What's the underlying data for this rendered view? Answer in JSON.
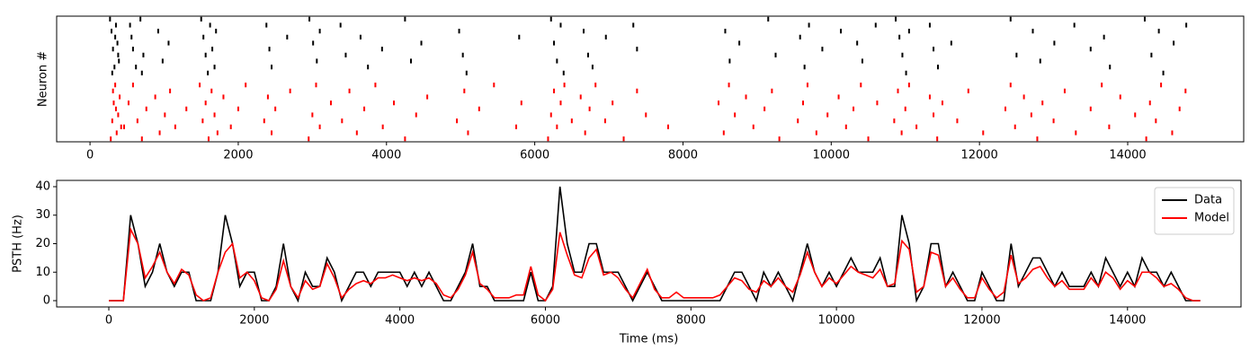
{
  "chart_data": [
    {
      "type": "raster",
      "ylabel": "Neuron #",
      "xlim": [
        -450,
        15565
      ],
      "ylim": [
        -0.5,
        20.5
      ],
      "xticks": [
        0,
        2000,
        4000,
        6000,
        8000,
        10000,
        12000,
        14000
      ],
      "series": [
        {
          "color": "#000000",
          "x": [
            270,
            290,
            310,
            330,
            350,
            370,
            390,
            300,
            340,
            380,
            540,
            580,
            620,
            560,
            680,
            720,
            700,
            920,
            980,
            1060,
            1500,
            1530,
            1560,
            1590,
            1620,
            1650,
            1680,
            1700,
            2380,
            2420,
            2450,
            2660,
            2960,
            3010,
            3060,
            3100,
            3380,
            3450,
            3650,
            3750,
            3940,
            4250,
            4330,
            4470,
            4980,
            5030,
            5080,
            5790,
            6220,
            6260,
            6300,
            6350,
            6390,
            6660,
            6720,
            6780,
            6960,
            7330,
            7380,
            8570,
            8630,
            8760,
            9150,
            9250,
            9580,
            9640,
            9700,
            9880,
            10130,
            10350,
            10420,
            10600,
            10870,
            10920,
            10960,
            11010,
            11050,
            11330,
            11380,
            11440,
            11620,
            12420,
            12500,
            12720,
            12820,
            13010,
            13280,
            13500,
            13680,
            13760,
            14230,
            14320,
            14420,
            14480,
            14620,
            14790
          ],
          "y": [
            20,
            18,
            15,
            12,
            19,
            16,
            13,
            11,
            17,
            14,
            19,
            15,
            12,
            17,
            20,
            14,
            11,
            18,
            13,
            16,
            20,
            17,
            14,
            11,
            19,
            15,
            12,
            18,
            19,
            15,
            12,
            17,
            20,
            16,
            13,
            18,
            19,
            14,
            17,
            12,
            15,
            20,
            13,
            16,
            18,
            14,
            11,
            17,
            20,
            16,
            13,
            19,
            11,
            18,
            14,
            12,
            17,
            19,
            15,
            18,
            13,
            16,
            20,
            14,
            17,
            12,
            19,
            15,
            18,
            16,
            13,
            19,
            20,
            17,
            14,
            11,
            18,
            19,
            15,
            12,
            16,
            20,
            14,
            18,
            13,
            16,
            19,
            15,
            17,
            12,
            20,
            14,
            18,
            11,
            16,
            19
          ]
        },
        {
          "color": "#ff0000",
          "x": [
            280,
            300,
            320,
            340,
            360,
            380,
            400,
            420,
            310,
            350,
            460,
            520,
            580,
            640,
            700,
            760,
            880,
            940,
            1010,
            1080,
            1150,
            1300,
            1480,
            1520,
            1560,
            1600,
            1640,
            1680,
            1720,
            1800,
            1900,
            2000,
            2100,
            2350,
            2400,
            2450,
            2500,
            2700,
            2950,
            3000,
            3050,
            3100,
            3250,
            3400,
            3500,
            3600,
            3700,
            3850,
            3950,
            4100,
            4250,
            4400,
            4550,
            4950,
            5050,
            5100,
            5250,
            5450,
            5750,
            5820,
            6180,
            6220,
            6260,
            6300,
            6350,
            6400,
            6500,
            6620,
            6680,
            6740,
            6820,
            6950,
            7050,
            7200,
            7380,
            7500,
            7800,
            8480,
            8550,
            8620,
            8700,
            8850,
            8950,
            9100,
            9200,
            9300,
            9550,
            9620,
            9680,
            9800,
            9950,
            10100,
            10200,
            10300,
            10400,
            10500,
            10620,
            10850,
            10900,
            10950,
            11000,
            11050,
            11150,
            11330,
            11380,
            11430,
            11500,
            11700,
            11850,
            12050,
            12350,
            12420,
            12480,
            12600,
            12700,
            12780,
            12850,
            13000,
            13150,
            13300,
            13500,
            13650,
            13750,
            13900,
            14100,
            14250,
            14300,
            14380,
            14450,
            14600,
            14700,
            14780
          ],
          "y": [
            0,
            3,
            6,
            9,
            1,
            4,
            7,
            2,
            8,
            5,
            2,
            6,
            9,
            3,
            0,
            5,
            7,
            1,
            4,
            8,
            2,
            5,
            9,
            3,
            6,
            0,
            8,
            4,
            1,
            7,
            2,
            5,
            9,
            3,
            7,
            1,
            5,
            8,
            0,
            4,
            9,
            2,
            6,
            3,
            8,
            1,
            5,
            9,
            2,
            6,
            0,
            4,
            7,
            3,
            8,
            1,
            5,
            9,
            2,
            6,
            0,
            4,
            8,
            2,
            6,
            9,
            3,
            7,
            1,
            5,
            9,
            3,
            6,
            0,
            8,
            4,
            2,
            6,
            1,
            9,
            4,
            7,
            2,
            5,
            8,
            0,
            3,
            6,
            9,
            1,
            4,
            7,
            2,
            5,
            9,
            0,
            6,
            3,
            8,
            1,
            5,
            9,
            2,
            7,
            4,
            0,
            6,
            3,
            8,
            1,
            5,
            9,
            2,
            7,
            4,
            0,
            6,
            3,
            8,
            1,
            5,
            9,
            2,
            7,
            4,
            0,
            6,
            3,
            9,
            1,
            5,
            8
          ]
        }
      ]
    },
    {
      "type": "line",
      "xlabel": "Time (ms)",
      "ylabel": "PSTH (Hz)",
      "xlim": [
        -717,
        15560
      ],
      "ylim": [
        -2.2,
        42.2
      ],
      "xticks": [
        0,
        2000,
        4000,
        6000,
        8000,
        10000,
        12000,
        14000
      ],
      "yticks": [
        0,
        10,
        20,
        30,
        40
      ],
      "legend": "upper right",
      "x": [
        0,
        100,
        200,
        300,
        400,
        500,
        600,
        700,
        800,
        900,
        1000,
        1100,
        1200,
        1300,
        1400,
        1500,
        1600,
        1700,
        1800,
        1900,
        2000,
        2100,
        2200,
        2300,
        2400,
        2500,
        2600,
        2700,
        2800,
        2900,
        3000,
        3100,
        3200,
        3300,
        3400,
        3500,
        3600,
        3700,
        3800,
        3900,
        4000,
        4100,
        4200,
        4300,
        4400,
        4500,
        4600,
        4700,
        4800,
        4900,
        5000,
        5100,
        5200,
        5300,
        5400,
        5500,
        5600,
        5700,
        5800,
        5900,
        6000,
        6100,
        6200,
        6300,
        6400,
        6500,
        6600,
        6700,
        6800,
        6900,
        7000,
        7100,
        7200,
        7300,
        7400,
        7500,
        7600,
        7700,
        7800,
        7900,
        8000,
        8100,
        8200,
        8300,
        8400,
        8500,
        8600,
        8700,
        8800,
        8900,
        9000,
        9100,
        9200,
        9300,
        9400,
        9500,
        9600,
        9700,
        9800,
        9900,
        10000,
        10100,
        10200,
        10300,
        10400,
        10500,
        10600,
        10700,
        10800,
        10900,
        11000,
        11100,
        11200,
        11300,
        11400,
        11500,
        11600,
        11700,
        11800,
        11900,
        12000,
        12100,
        12200,
        12300,
        12400,
        12500,
        12600,
        12700,
        12800,
        12900,
        13000,
        13100,
        13200,
        13300,
        13400,
        13500,
        13600,
        13700,
        13800,
        13900,
        14000,
        14100,
        14200,
        14300,
        14400,
        14500,
        14600,
        14700,
        14800,
        14900,
        15000
      ],
      "series": [
        {
          "name": "Data",
          "color": "#000000",
          "values": [
            0,
            0,
            0,
            30,
            20,
            5,
            10,
            20,
            10,
            5,
            10,
            10,
            0,
            0,
            0,
            10,
            30,
            20,
            5,
            10,
            10,
            0,
            0,
            5,
            20,
            5,
            0,
            10,
            5,
            5,
            15,
            10,
            0,
            5,
            10,
            10,
            5,
            10,
            10,
            10,
            10,
            5,
            10,
            5,
            10,
            5,
            0,
            0,
            5,
            10,
            20,
            5,
            5,
            0,
            0,
            0,
            0,
            0,
            10,
            0,
            0,
            5,
            40,
            20,
            10,
            10,
            20,
            20,
            10,
            10,
            10,
            5,
            0,
            5,
            10,
            5,
            0,
            0,
            0,
            0,
            0,
            0,
            0,
            0,
            0,
            5,
            10,
            10,
            5,
            0,
            10,
            5,
            10,
            5,
            0,
            10,
            20,
            10,
            5,
            10,
            5,
            10,
            15,
            10,
            10,
            10,
            15,
            5,
            5,
            30,
            20,
            0,
            5,
            20,
            20,
            5,
            10,
            5,
            0,
            0,
            10,
            5,
            0,
            0,
            20,
            5,
            10,
            15,
            15,
            10,
            5,
            10,
            5,
            5,
            5,
            10,
            5,
            15,
            10,
            5,
            10,
            5,
            15,
            10,
            10,
            5,
            10,
            5,
            0,
            0,
            0
          ]
        },
        {
          "name": "Model",
          "color": "#ff0000",
          "values": [
            0,
            0,
            0,
            25,
            20,
            8,
            12,
            17,
            10,
            6,
            11,
            9,
            2,
            0,
            1,
            10,
            17,
            20,
            8,
            10,
            7,
            1,
            0,
            4,
            14,
            5,
            1,
            7,
            4,
            5,
            13,
            8,
            1,
            4,
            6,
            7,
            6,
            8,
            8,
            9,
            8,
            7,
            8,
            7,
            8,
            6,
            2,
            1,
            4,
            9,
            17,
            6,
            4,
            1,
            1,
            1,
            2,
            2,
            12,
            2,
            0,
            4,
            24,
            16,
            9,
            8,
            15,
            18,
            9,
            10,
            8,
            4,
            1,
            6,
            11,
            4,
            1,
            1,
            3,
            1,
            1,
            1,
            1,
            1,
            2,
            5,
            8,
            7,
            4,
            3,
            7,
            5,
            8,
            5,
            3,
            9,
            17,
            10,
            5,
            8,
            6,
            9,
            12,
            10,
            9,
            8,
            11,
            5,
            6,
            21,
            18,
            3,
            5,
            17,
            16,
            5,
            8,
            4,
            1,
            1,
            8,
            4,
            1,
            3,
            16,
            6,
            8,
            11,
            12,
            8,
            5,
            7,
            4,
            4,
            4,
            8,
            5,
            10,
            8,
            4,
            7,
            5,
            10,
            10,
            8,
            5,
            6,
            4,
            1,
            0,
            0
          ]
        }
      ]
    }
  ]
}
